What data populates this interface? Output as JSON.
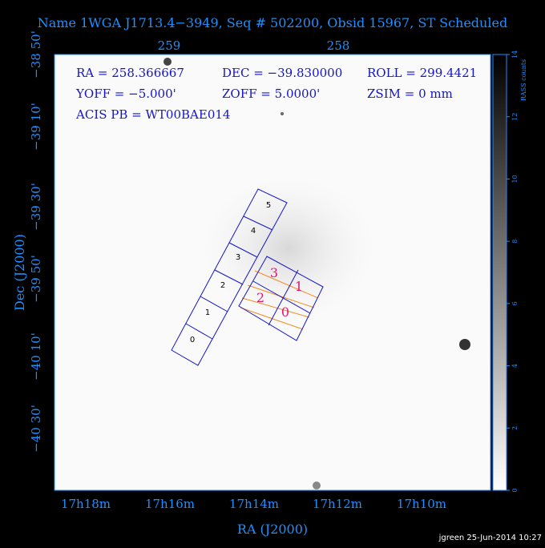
{
  "title": "Name 1WGA J1713.4−3949, Seq # 502200, Obsid 15967, ST Scheduled",
  "top_ticks": [
    "259",
    "258"
  ],
  "left_ticks": [
    "−38 50'",
    "−39 10'",
    "−39 30'",
    "−39 50'",
    "−40 10'",
    "−40 30'"
  ],
  "bottom_ticks": [
    "17h18m",
    "17h16m",
    "17h14m",
    "17h12m",
    "17h10m"
  ],
  "x_label": "RA (J2000)",
  "y_label": "Dec (J2000)",
  "info": [
    "RA = 258.366667",
    "DEC = −39.830000",
    "ROLL = 299.4421",
    "YOFF = −5.000'",
    "ZOFF = 5.0000'",
    "ZSIM = 0 mm",
    "ACIS PB = WT00BAE014"
  ],
  "s_chips": [
    "0",
    "1",
    "2",
    "3",
    "4",
    "5"
  ],
  "i_chips": [
    "3",
    "1",
    "2",
    "0"
  ],
  "colorbar": {
    "label": "RASS counts",
    "lim": [
      0,
      14
    ],
    "ticks": [
      0,
      2,
      4,
      6,
      8,
      10,
      12,
      14
    ]
  },
  "footer": "jgreen 25-Jun-2014 10:27"
}
